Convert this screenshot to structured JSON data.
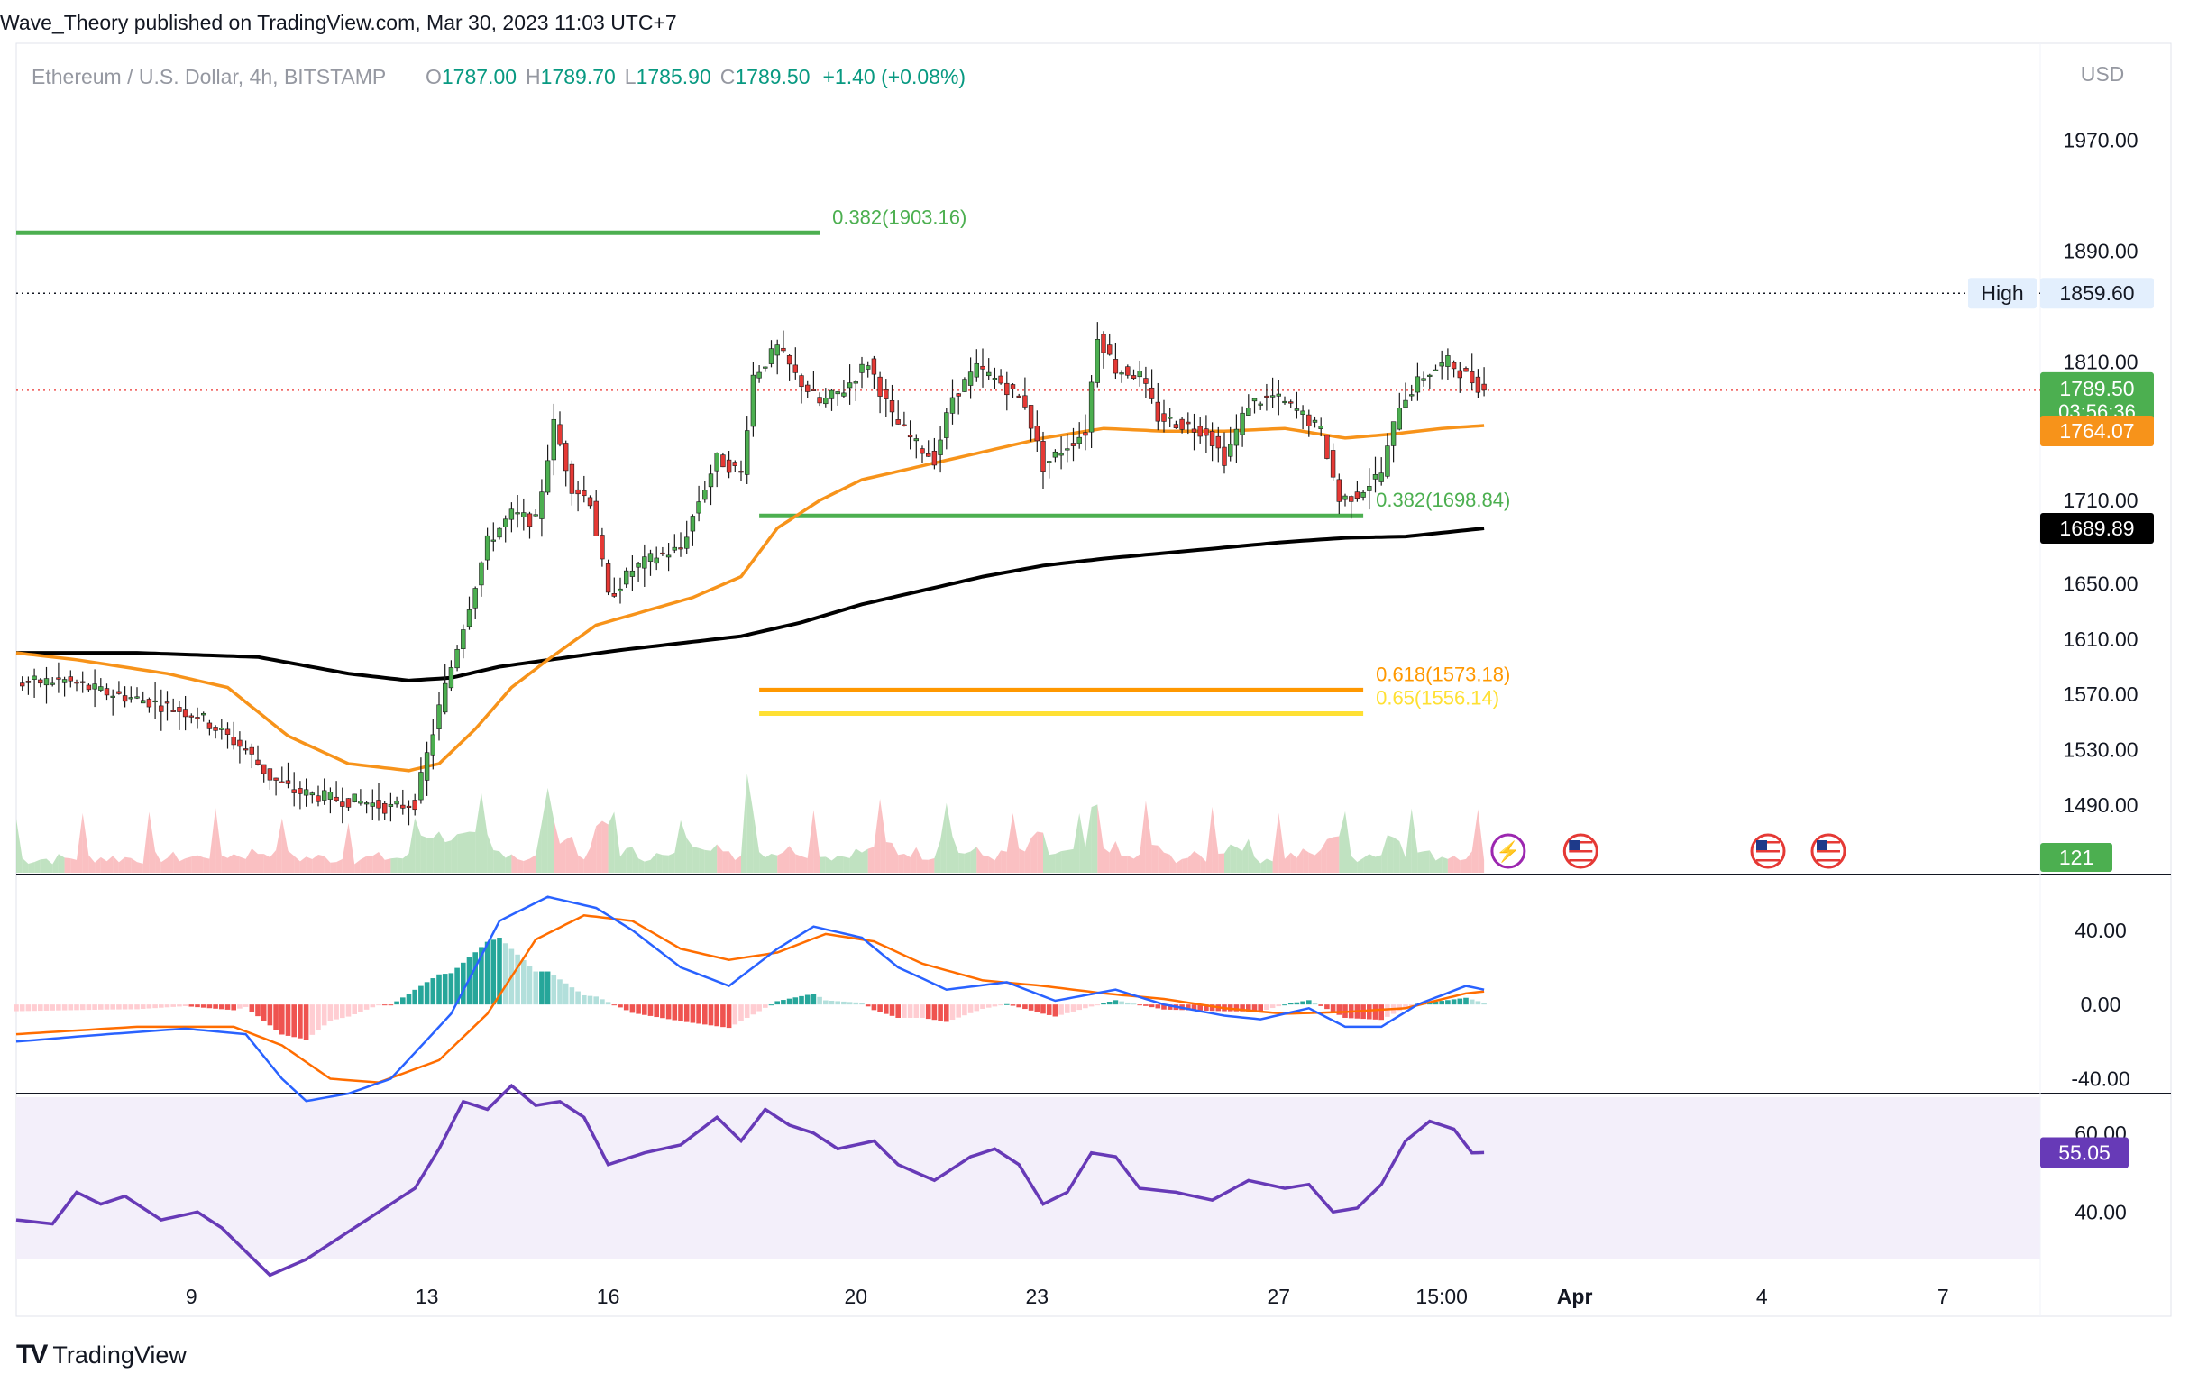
{
  "header": {
    "publisher_line": "Wave_Theory published on TradingView.com, Mar 30, 2023 11:03 UTC+7"
  },
  "legend": {
    "symbol": "Ethereum / U.S. Dollar, 4h, BITSTAMP",
    "o_label": "O",
    "o_value": "1787.00",
    "h_label": "H",
    "h_value": "1789.70",
    "l_label": "L",
    "l_value": "1785.90",
    "c_label": "C",
    "c_value": "1789.50",
    "change": "+1.40 (+0.08%)"
  },
  "footer": {
    "brand": "TradingView",
    "logo_text": "TV"
  },
  "colors": {
    "up": "#26a69a",
    "down": "#ef5350",
    "candle_up": "#4caf50",
    "candle_down": "#e53935",
    "ema_fast": "#f7931a",
    "ema_slow": "#000000",
    "fib_green": "#4caf50",
    "fib_orange": "#ff9800",
    "fib_yellow": "#ffeb3b",
    "rsi": "#673ab7",
    "macd": "#2962ff",
    "signal": "#ff6d00"
  },
  "chart_data": [
    {
      "type": "candlestick",
      "currency_label": "USD",
      "ylim": [
        1440,
        2040
      ],
      "y_ticks": [
        "1970.00",
        "1890.00",
        "1810.00",
        "1710.00",
        "1650.00",
        "1610.00",
        "1570.00",
        "1530.00",
        "1490.00"
      ],
      "x_ticks": [
        "9",
        "13",
        "16",
        "20",
        "23",
        "27",
        "15:00",
        "Apr",
        "4",
        "7"
      ],
      "x_tick_index": [
        29,
        68,
        98,
        139,
        169,
        209,
        236,
        258,
        289,
        319
      ],
      "price_labels": [
        {
          "text": "1859.60",
          "value": 1859.6,
          "label": "High",
          "color": "#e3effd"
        },
        {
          "text": "1789.50",
          "value": 1789.5,
          "sub": "03:56:36",
          "color": "#4caf50"
        },
        {
          "text": "1764.07",
          "value": 1764.07,
          "color": "#f7931a"
        },
        {
          "text": "1689.89",
          "value": 1689.89,
          "color": "#000000"
        }
      ],
      "fib_levels": [
        {
          "label": "0.382(1903.16)",
          "value": 1903.16,
          "from": 0,
          "to": 133,
          "color": "#4caf50"
        },
        {
          "label": "0.382(1698.84)",
          "value": 1698.84,
          "from": 123,
          "to": 223,
          "color": "#4caf50"
        },
        {
          "label": "0.618(1573.18)",
          "value": 1573.18,
          "from": 123,
          "to": 223,
          "color": "#ff9800"
        },
        {
          "label": "0.65(1556.14)",
          "value": 1556.14,
          "from": 123,
          "to": 223,
          "color": "#ffe033"
        }
      ],
      "volume_label": "121",
      "anchors": [
        [
          0,
          1578
        ],
        [
          8,
          1580
        ],
        [
          14,
          1572
        ],
        [
          22,
          1565
        ],
        [
          30,
          1555
        ],
        [
          38,
          1530
        ],
        [
          42,
          1510
        ],
        [
          46,
          1500
        ],
        [
          52,
          1495
        ],
        [
          58,
          1492
        ],
        [
          62,
          1488
        ],
        [
          66,
          1492
        ],
        [
          70,
          1560
        ],
        [
          74,
          1620
        ],
        [
          78,
          1680
        ],
        [
          82,
          1700
        ],
        [
          86,
          1695
        ],
        [
          89,
          1765
        ],
        [
          92,
          1720
        ],
        [
          95,
          1710
        ],
        [
          98,
          1640
        ],
        [
          102,
          1660
        ],
        [
          106,
          1670
        ],
        [
          110,
          1675
        ],
        [
          113,
          1710
        ],
        [
          116,
          1740
        ],
        [
          120,
          1730
        ],
        [
          122,
          1800
        ],
        [
          126,
          1820
        ],
        [
          129,
          1800
        ],
        [
          133,
          1780
        ],
        [
          137,
          1790
        ],
        [
          141,
          1810
        ],
        [
          145,
          1770
        ],
        [
          149,
          1750
        ],
        [
          152,
          1740
        ],
        [
          155,
          1785
        ],
        [
          159,
          1805
        ],
        [
          163,
          1795
        ],
        [
          167,
          1780
        ],
        [
          170,
          1735
        ],
        [
          174,
          1750
        ],
        [
          177,
          1760
        ],
        [
          179,
          1830
        ],
        [
          182,
          1805
        ],
        [
          186,
          1800
        ],
        [
          189,
          1770
        ],
        [
          193,
          1765
        ],
        [
          197,
          1760
        ],
        [
          200,
          1740
        ],
        [
          204,
          1780
        ],
        [
          208,
          1785
        ],
        [
          212,
          1775
        ],
        [
          216,
          1760
        ],
        [
          219,
          1710
        ],
        [
          222,
          1715
        ],
        [
          226,
          1730
        ],
        [
          229,
          1780
        ],
        [
          233,
          1800
        ],
        [
          237,
          1810
        ],
        [
          240,
          1800
        ],
        [
          243,
          1789.5
        ]
      ],
      "ema_fast_anchors": [
        [
          0,
          1600
        ],
        [
          10,
          1595
        ],
        [
          25,
          1585
        ],
        [
          35,
          1575
        ],
        [
          45,
          1540
        ],
        [
          55,
          1520
        ],
        [
          65,
          1515
        ],
        [
          70,
          1520
        ],
        [
          76,
          1545
        ],
        [
          82,
          1575
        ],
        [
          88,
          1595
        ],
        [
          96,
          1620
        ],
        [
          104,
          1630
        ],
        [
          112,
          1640
        ],
        [
          120,
          1655
        ],
        [
          126,
          1690
        ],
        [
          133,
          1710
        ],
        [
          140,
          1725
        ],
        [
          150,
          1735
        ],
        [
          160,
          1745
        ],
        [
          170,
          1755
        ],
        [
          180,
          1762
        ],
        [
          190,
          1760
        ],
        [
          200,
          1760
        ],
        [
          210,
          1762
        ],
        [
          220,
          1755
        ],
        [
          228,
          1758
        ],
        [
          236,
          1762
        ],
        [
          243,
          1764.07
        ]
      ],
      "ema_slow_anchors": [
        [
          0,
          1600
        ],
        [
          20,
          1600
        ],
        [
          40,
          1597
        ],
        [
          55,
          1585
        ],
        [
          65,
          1580
        ],
        [
          72,
          1582
        ],
        [
          80,
          1590
        ],
        [
          90,
          1596
        ],
        [
          100,
          1602
        ],
        [
          110,
          1607
        ],
        [
          120,
          1612
        ],
        [
          130,
          1622
        ],
        [
          140,
          1635
        ],
        [
          150,
          1645
        ],
        [
          160,
          1655
        ],
        [
          170,
          1663
        ],
        [
          180,
          1668
        ],
        [
          190,
          1672
        ],
        [
          200,
          1676
        ],
        [
          210,
          1680
        ],
        [
          220,
          1683
        ],
        [
          230,
          1684
        ],
        [
          243,
          1689.89
        ]
      ]
    },
    {
      "type": "histogram",
      "name": "MACD",
      "ylim": [
        -48,
        70
      ],
      "y_ticks": [
        "40.00",
        "0.00",
        "-40.00"
      ],
      "macd_anchors": [
        [
          0,
          -20
        ],
        [
          15,
          -16
        ],
        [
          28,
          -13
        ],
        [
          38,
          -16
        ],
        [
          44,
          -40
        ],
        [
          48,
          -52
        ],
        [
          55,
          -48
        ],
        [
          62,
          -40
        ],
        [
          72,
          -5
        ],
        [
          80,
          45
        ],
        [
          88,
          58
        ],
        [
          96,
          52
        ],
        [
          102,
          40
        ],
        [
          110,
          20
        ],
        [
          118,
          10
        ],
        [
          126,
          30
        ],
        [
          132,
          42
        ],
        [
          140,
          36
        ],
        [
          146,
          20
        ],
        [
          154,
          8
        ],
        [
          164,
          12
        ],
        [
          172,
          2
        ],
        [
          182,
          8
        ],
        [
          190,
          0
        ],
        [
          200,
          -6
        ],
        [
          206,
          -8
        ],
        [
          214,
          -2
        ],
        [
          220,
          -12
        ],
        [
          226,
          -12
        ],
        [
          232,
          0
        ],
        [
          240,
          10
        ],
        [
          243,
          8
        ]
      ],
      "signal_anchors": [
        [
          0,
          -16
        ],
        [
          20,
          -12
        ],
        [
          36,
          -12
        ],
        [
          44,
          -22
        ],
        [
          52,
          -40
        ],
        [
          60,
          -42
        ],
        [
          70,
          -30
        ],
        [
          78,
          -5
        ],
        [
          86,
          35
        ],
        [
          94,
          48
        ],
        [
          102,
          45
        ],
        [
          110,
          30
        ],
        [
          118,
          24
        ],
        [
          126,
          28
        ],
        [
          134,
          38
        ],
        [
          142,
          34
        ],
        [
          150,
          22
        ],
        [
          160,
          13
        ],
        [
          170,
          10
        ],
        [
          180,
          6
        ],
        [
          190,
          3
        ],
        [
          200,
          -2
        ],
        [
          210,
          -5
        ],
        [
          220,
          -4
        ],
        [
          230,
          -2
        ],
        [
          240,
          6
        ],
        [
          243,
          7
        ]
      ]
    },
    {
      "type": "line",
      "name": "RSI",
      "ylim": [
        25,
        70
      ],
      "y_ticks": [
        "60.00",
        "40.00"
      ],
      "band": [
        30,
        70
      ],
      "last_value": "55.05",
      "anchors": [
        [
          0,
          38
        ],
        [
          6,
          37
        ],
        [
          10,
          45
        ],
        [
          14,
          42
        ],
        [
          18,
          44
        ],
        [
          24,
          38
        ],
        [
          30,
          40
        ],
        [
          34,
          36
        ],
        [
          38,
          30
        ],
        [
          42,
          24
        ],
        [
          48,
          28
        ],
        [
          54,
          34
        ],
        [
          60,
          40
        ],
        [
          66,
          46
        ],
        [
          70,
          56
        ],
        [
          74,
          68
        ],
        [
          78,
          66
        ],
        [
          82,
          72
        ],
        [
          86,
          67
        ],
        [
          90,
          68
        ],
        [
          94,
          64
        ],
        [
          98,
          52
        ],
        [
          104,
          55
        ],
        [
          110,
          57
        ],
        [
          116,
          64
        ],
        [
          120,
          58
        ],
        [
          124,
          66
        ],
        [
          128,
          62
        ],
        [
          132,
          60
        ],
        [
          136,
          56
        ],
        [
          142,
          58
        ],
        [
          146,
          52
        ],
        [
          152,
          48
        ],
        [
          158,
          54
        ],
        [
          162,
          56
        ],
        [
          166,
          52
        ],
        [
          170,
          42
        ],
        [
          174,
          45
        ],
        [
          178,
          55
        ],
        [
          182,
          54
        ],
        [
          186,
          46
        ],
        [
          192,
          45
        ],
        [
          198,
          43
        ],
        [
          204,
          48
        ],
        [
          210,
          46
        ],
        [
          214,
          47
        ],
        [
          218,
          40
        ],
        [
          222,
          41
        ],
        [
          226,
          47
        ],
        [
          230,
          58
        ],
        [
          234,
          63
        ],
        [
          238,
          61
        ],
        [
          241,
          55
        ],
        [
          243,
          55.05
        ]
      ]
    }
  ],
  "events": [
    {
      "icon": "lightning-icon",
      "bar": 247,
      "glyph": "⚡"
    },
    {
      "icon": "us-flag-icon",
      "bar": 259
    },
    {
      "icon": "us-flag-icon",
      "bar": 290
    },
    {
      "icon": "us-flag-icon",
      "bar": 300
    }
  ]
}
